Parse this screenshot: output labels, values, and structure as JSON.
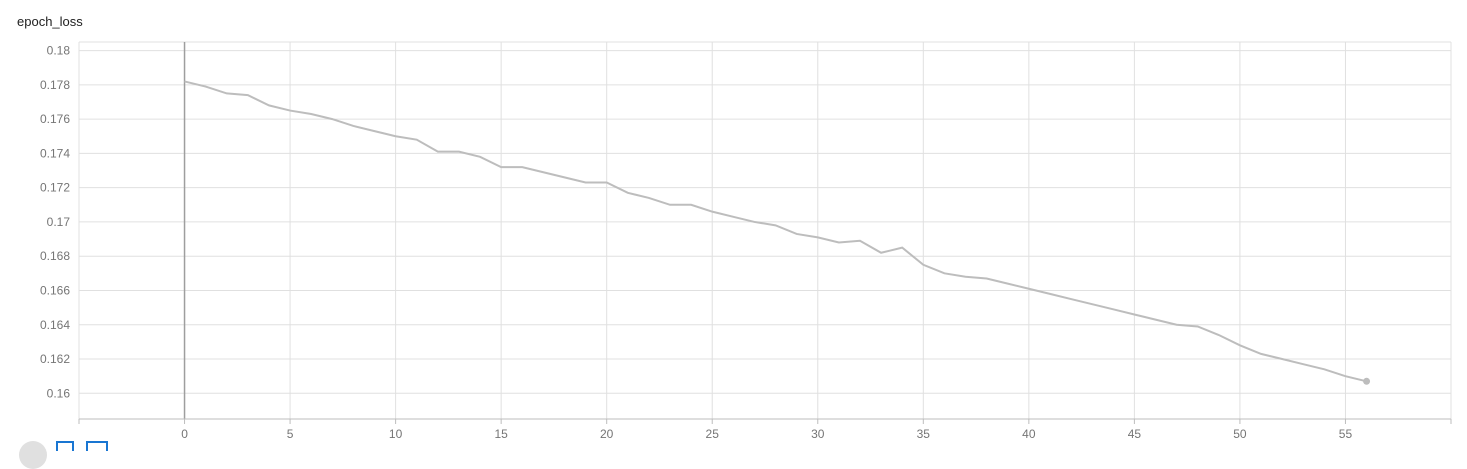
{
  "card": {
    "title": "epoch_loss"
  },
  "colors": {
    "series": "#bdbdbd",
    "grid": "#e0e0e0",
    "zero_line": "#9e9e9e",
    "control": "#1976d2"
  },
  "icons": [
    "expand-icon",
    "data-icon",
    "fit-domain-icon"
  ],
  "chart_data": {
    "type": "line",
    "title": "epoch_loss",
    "xlabel": "",
    "ylabel": "",
    "xlim": [
      -5,
      60
    ],
    "ylim": [
      0.1585,
      0.1805
    ],
    "x_ticks": [
      0,
      5,
      10,
      15,
      20,
      25,
      30,
      35,
      40,
      45,
      50,
      55
    ],
    "y_ticks": [
      0.16,
      0.162,
      0.164,
      0.166,
      0.168,
      0.17,
      0.172,
      0.174,
      0.176,
      0.178,
      0.18
    ],
    "x_tick_labels": [
      "0",
      "5",
      "10",
      "15",
      "20",
      "25",
      "30",
      "35",
      "40",
      "45",
      "50",
      "55"
    ],
    "y_tick_labels": [
      "0.16",
      "0.162",
      "0.164",
      "0.166",
      "0.168",
      "0.17",
      "0.172",
      "0.174",
      "0.176",
      "0.178",
      "0.18"
    ],
    "grid": true,
    "series": [
      {
        "x": [
          0,
          1,
          2,
          3,
          4,
          5,
          6,
          7,
          8,
          9,
          10,
          11,
          12,
          13,
          14,
          15,
          16,
          17,
          18,
          19,
          20,
          21,
          22,
          23,
          24,
          25,
          26,
          27,
          28,
          29,
          30,
          31,
          32,
          33,
          34,
          35,
          36,
          37,
          38,
          39,
          40,
          41,
          42,
          43,
          44,
          45,
          46,
          47,
          48,
          49,
          50,
          51,
          52,
          53,
          54,
          55,
          56
        ],
        "values": [
          0.1782,
          0.1779,
          0.1775,
          0.1774,
          0.1768,
          0.1765,
          0.1763,
          0.176,
          0.1756,
          0.1753,
          0.175,
          0.1748,
          0.1741,
          0.1741,
          0.1738,
          0.1732,
          0.1732,
          0.1729,
          0.1726,
          0.1723,
          0.1723,
          0.1717,
          0.1714,
          0.171,
          0.171,
          0.1706,
          0.1703,
          0.17,
          0.1698,
          0.1693,
          0.1691,
          0.1688,
          0.1689,
          0.1682,
          0.1685,
          0.1675,
          0.167,
          0.1668,
          0.1667,
          0.1664,
          0.1661,
          0.1658,
          0.1655,
          0.1652,
          0.1649,
          0.1646,
          0.1643,
          0.164,
          0.1639,
          0.1634,
          0.1628,
          0.1623,
          0.162,
          0.1617,
          0.1614,
          0.161,
          0.1607
        ]
      }
    ]
  }
}
